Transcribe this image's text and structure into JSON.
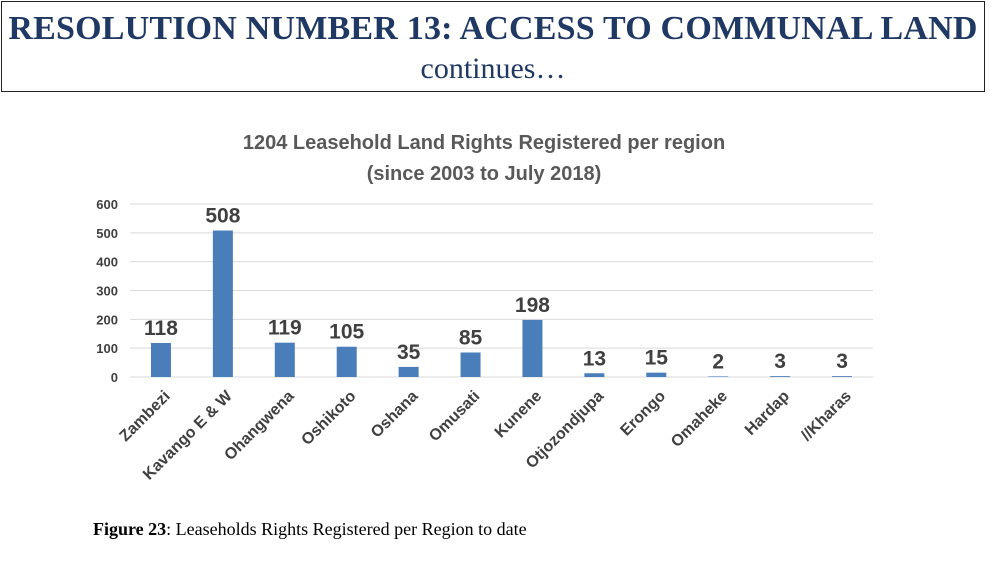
{
  "header": {
    "title": "RESOLUTION NUMBER 13: ACCESS TO COMMUNAL LAND",
    "subtitle": "continues…"
  },
  "chart_data": {
    "type": "bar",
    "title": "1204 Leasehold Land Rights Registered per region",
    "subtitle": "(since 2003 to July 2018)",
    "categories": [
      "Zambezi",
      "Kavango E & W",
      "Ohangwena",
      "Oshikoto",
      "Oshana",
      "Omusati",
      "Kunene",
      "Otjozondjupa",
      "Erongo",
      "Omaheke",
      "Hardap",
      "//Kharas"
    ],
    "values": [
      118,
      508,
      119,
      105,
      35,
      85,
      198,
      13,
      15,
      2,
      3,
      3
    ],
    "ylim": [
      0,
      600
    ],
    "yticks": [
      0,
      100,
      200,
      300,
      400,
      500,
      600
    ],
    "xlabel": "",
    "ylabel": "",
    "bar_color": "#4a7ebb",
    "grid": true,
    "data_labels": true
  },
  "caption": {
    "label": "Figure 23",
    "text": ": Leaseholds Rights Registered per Region to date"
  },
  "colors": {
    "title_text": "#1f3864",
    "bar": "#4a7ebb",
    "gridline": "#d9d9d9"
  }
}
